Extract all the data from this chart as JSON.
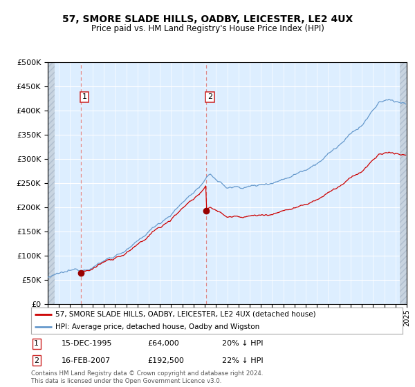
{
  "title": "57, SMORE SLADE HILLS, OADBY, LEICESTER, LE2 4UX",
  "subtitle": "Price paid vs. HM Land Registry's House Price Index (HPI)",
  "background_color": "#ffffff",
  "plot_bg_color": "#ddeeff",
  "hatch_color": "#c8d4e0",
  "grid_color": "#ffffff",
  "x_start_year": 1993,
  "x_end_year": 2025,
  "y_min": 0,
  "y_max": 500000,
  "y_ticks": [
    0,
    50000,
    100000,
    150000,
    200000,
    250000,
    300000,
    350000,
    400000,
    450000,
    500000
  ],
  "purchases": [
    {
      "year": 1995.96,
      "price": 64000,
      "label": "1"
    },
    {
      "year": 2007.12,
      "price": 192500,
      "label": "2"
    }
  ],
  "red_line_color": "#cc0000",
  "blue_line_color": "#6699cc",
  "marker_color": "#990000",
  "vline_color": "#dd8888",
  "legend_line1": "57, SMORE SLADE HILLS, OADBY, LEICESTER, LE2 4UX (detached house)",
  "legend_line2": "HPI: Average price, detached house, Oadby and Wigston",
  "footnote": "Contains HM Land Registry data © Crown copyright and database right 2024.\nThis data is licensed under the Open Government Licence v3.0.",
  "label1_date": "15-DEC-1995",
  "label1_price": "£64,000",
  "label1_hpi": "20% ↓ HPI",
  "label2_date": "16-FEB-2007",
  "label2_price": "£192,500",
  "label2_hpi": "22% ↓ HPI"
}
